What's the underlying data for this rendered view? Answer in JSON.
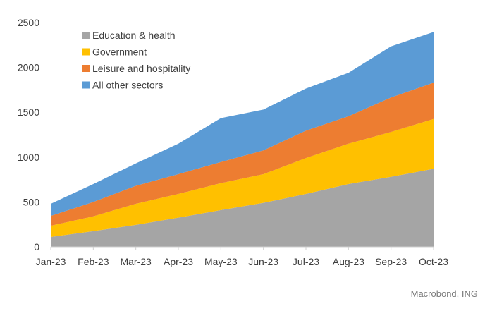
{
  "chart_data": {
    "type": "area",
    "stacked": true,
    "title": "",
    "xlabel": "",
    "ylabel": "",
    "ylim": [
      0,
      2500
    ],
    "yticks": [
      0,
      500,
      1000,
      1500,
      2000,
      2500
    ],
    "grid": false,
    "legend_position": "top-left",
    "categories": [
      "Jan-23",
      "Feb-23",
      "Mar-23",
      "Apr-23",
      "May-23",
      "Jun-23",
      "Jul-23",
      "Aug-23",
      "Sep-23",
      "Oct-23"
    ],
    "series": [
      {
        "name": "Education & health",
        "color": "#a5a5a5",
        "values": [
          110,
          175,
          245,
          325,
          410,
          490,
          590,
          700,
          780,
          870
        ]
      },
      {
        "name": "Government",
        "color": "#ffc000",
        "values": [
          125,
          165,
          235,
          265,
          300,
          320,
          400,
          450,
          500,
          555
        ]
      },
      {
        "name": "Leisure and hospitality",
        "color": "#ed7d31",
        "values": [
          110,
          160,
          200,
          220,
          235,
          265,
          305,
          305,
          385,
          405
        ]
      },
      {
        "name": "All other sectors",
        "color": "#5b9bd5",
        "values": [
          135,
          200,
          250,
          340,
          490,
          455,
          470,
          485,
          570,
          565
        ]
      }
    ]
  },
  "source": "Macrobond, ING"
}
